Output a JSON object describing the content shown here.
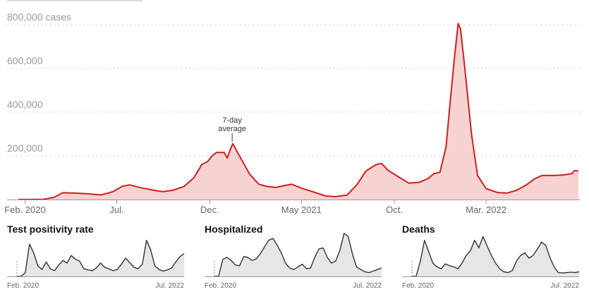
{
  "colors": {
    "main_line": "#cc1f1f",
    "main_fill": "#f6d3d1",
    "small_line": "#333333",
    "small_fill": "#e6e6e6",
    "grid": "#dddddd",
    "axis_text": "#999999",
    "tick_text": "#666666"
  },
  "chart_data": [
    {
      "type": "area",
      "title": "",
      "unit_label": "cases",
      "y_ticks": [
        200000,
        400000,
        600000,
        800000
      ],
      "y_tick_labels": [
        "200,000",
        "400,000",
        "600,000",
        "800,000 cases"
      ],
      "x_ticks": [
        "2020-02-01",
        "2020-07-01",
        "2020-12-01",
        "2021-05-01",
        "2021-10-01",
        "2022-03-01"
      ],
      "x_tick_labels": [
        "Feb. 2020",
        "Jul.",
        "Dec.",
        "May 2021",
        "Oct.",
        "Mar. 2022"
      ],
      "xlim": [
        "2020-01-21",
        "2022-07-31"
      ],
      "ylim": [
        0,
        850000
      ],
      "grid": true,
      "annotation": {
        "text_lines": [
          "7-day",
          "average"
        ],
        "x": "2021-01-07",
        "y": 255000
      },
      "series": [
        {
          "values": [
            [
              "2020-01-21",
              0
            ],
            [
              "2020-03-01",
              500
            ],
            [
              "2020-03-20",
              10000
            ],
            [
              "2020-04-03",
              31000
            ],
            [
              "2020-04-20",
              30000
            ],
            [
              "2020-05-15",
              26000
            ],
            [
              "2020-06-05",
              21000
            ],
            [
              "2020-06-25",
              36000
            ],
            [
              "2020-07-10",
              60000
            ],
            [
              "2020-07-22",
              67000
            ],
            [
              "2020-08-10",
              54000
            ],
            [
              "2020-09-05",
              40000
            ],
            [
              "2020-09-15",
              36000
            ],
            [
              "2020-10-01",
              42000
            ],
            [
              "2020-10-20",
              60000
            ],
            [
              "2020-11-05",
              100000
            ],
            [
              "2020-11-18",
              160000
            ],
            [
              "2020-11-28",
              175000
            ],
            [
              "2020-12-05",
              200000
            ],
            [
              "2020-12-12",
              215000
            ],
            [
              "2020-12-25",
              215000
            ],
            [
              "2020-12-30",
              190000
            ],
            [
              "2021-01-04",
              230000
            ],
            [
              "2021-01-08",
              255000
            ],
            [
              "2021-01-15",
              220000
            ],
            [
              "2021-01-25",
              170000
            ],
            [
              "2021-02-05",
              115000
            ],
            [
              "2021-02-20",
              70000
            ],
            [
              "2021-03-05",
              60000
            ],
            [
              "2021-03-20",
              55000
            ],
            [
              "2021-04-05",
              65000
            ],
            [
              "2021-04-15",
              70000
            ],
            [
              "2021-05-01",
              52000
            ],
            [
              "2021-05-20",
              35000
            ],
            [
              "2021-06-10",
              16000
            ],
            [
              "2021-06-25",
              13000
            ],
            [
              "2021-07-15",
              20000
            ],
            [
              "2021-08-01",
              70000
            ],
            [
              "2021-08-15",
              130000
            ],
            [
              "2021-09-01",
              160000
            ],
            [
              "2021-09-10",
              165000
            ],
            [
              "2021-09-20",
              135000
            ],
            [
              "2021-10-10",
              100000
            ],
            [
              "2021-10-25",
              75000
            ],
            [
              "2021-11-10",
              78000
            ],
            [
              "2021-11-25",
              95000
            ],
            [
              "2021-12-05",
              118000
            ],
            [
              "2021-12-15",
              125000
            ],
            [
              "2021-12-25",
              240000
            ],
            [
              "2022-01-01",
              450000
            ],
            [
              "2022-01-08",
              650000
            ],
            [
              "2022-01-14",
              805000
            ],
            [
              "2022-01-18",
              780000
            ],
            [
              "2022-01-25",
              600000
            ],
            [
              "2022-02-05",
              300000
            ],
            [
              "2022-02-15",
              110000
            ],
            [
              "2022-03-01",
              50000
            ],
            [
              "2022-03-20",
              32000
            ],
            [
              "2022-04-05",
              30000
            ],
            [
              "2022-04-20",
              42000
            ],
            [
              "2022-05-05",
              65000
            ],
            [
              "2022-05-20",
              95000
            ],
            [
              "2022-06-01",
              110000
            ],
            [
              "2022-06-20",
              110000
            ],
            [
              "2022-07-05",
              112000
            ],
            [
              "2022-07-20",
              118000
            ],
            [
              "2022-07-25",
              133000
            ],
            [
              "2022-07-31",
              130000
            ]
          ]
        }
      ]
    },
    {
      "type": "area",
      "title": "Test positivity rate",
      "x_tick_labels": [
        "Feb. 2020",
        "Jul. 2022"
      ],
      "values": [
        0,
        0,
        10,
        85,
        62,
        28,
        18,
        38,
        20,
        15,
        30,
        42,
        35,
        55,
        45,
        40,
        20,
        17,
        15,
        22,
        35,
        24,
        20,
        15,
        18,
        32,
        48,
        36,
        24,
        20,
        32,
        95,
        70,
        28,
        18,
        14,
        17,
        22,
        38,
        52,
        60
      ]
    },
    {
      "type": "area",
      "title": "Hospitalized",
      "x_tick_labels": [
        "Feb. 2020",
        "Jul. 2022"
      ],
      "values": [
        0,
        0,
        45,
        50,
        42,
        30,
        28,
        52,
        50,
        42,
        46,
        60,
        78,
        95,
        100,
        82,
        62,
        35,
        22,
        18,
        25,
        32,
        20,
        22,
        50,
        72,
        75,
        50,
        35,
        40,
        68,
        113,
        105,
        60,
        25,
        18,
        12,
        10,
        14,
        18,
        22
      ]
    },
    {
      "type": "area",
      "title": "Deaths",
      "x_tick_labels": [
        "Feb. 2020",
        "Jul. 2022"
      ],
      "values": [
        0,
        0,
        40,
        95,
        65,
        35,
        25,
        20,
        33,
        28,
        25,
        20,
        35,
        55,
        68,
        95,
        75,
        105,
        80,
        55,
        35,
        20,
        12,
        10,
        15,
        40,
        55,
        62,
        48,
        55,
        72,
        90,
        82,
        50,
        25,
        10,
        9,
        10,
        11,
        10,
        12
      ]
    }
  ]
}
